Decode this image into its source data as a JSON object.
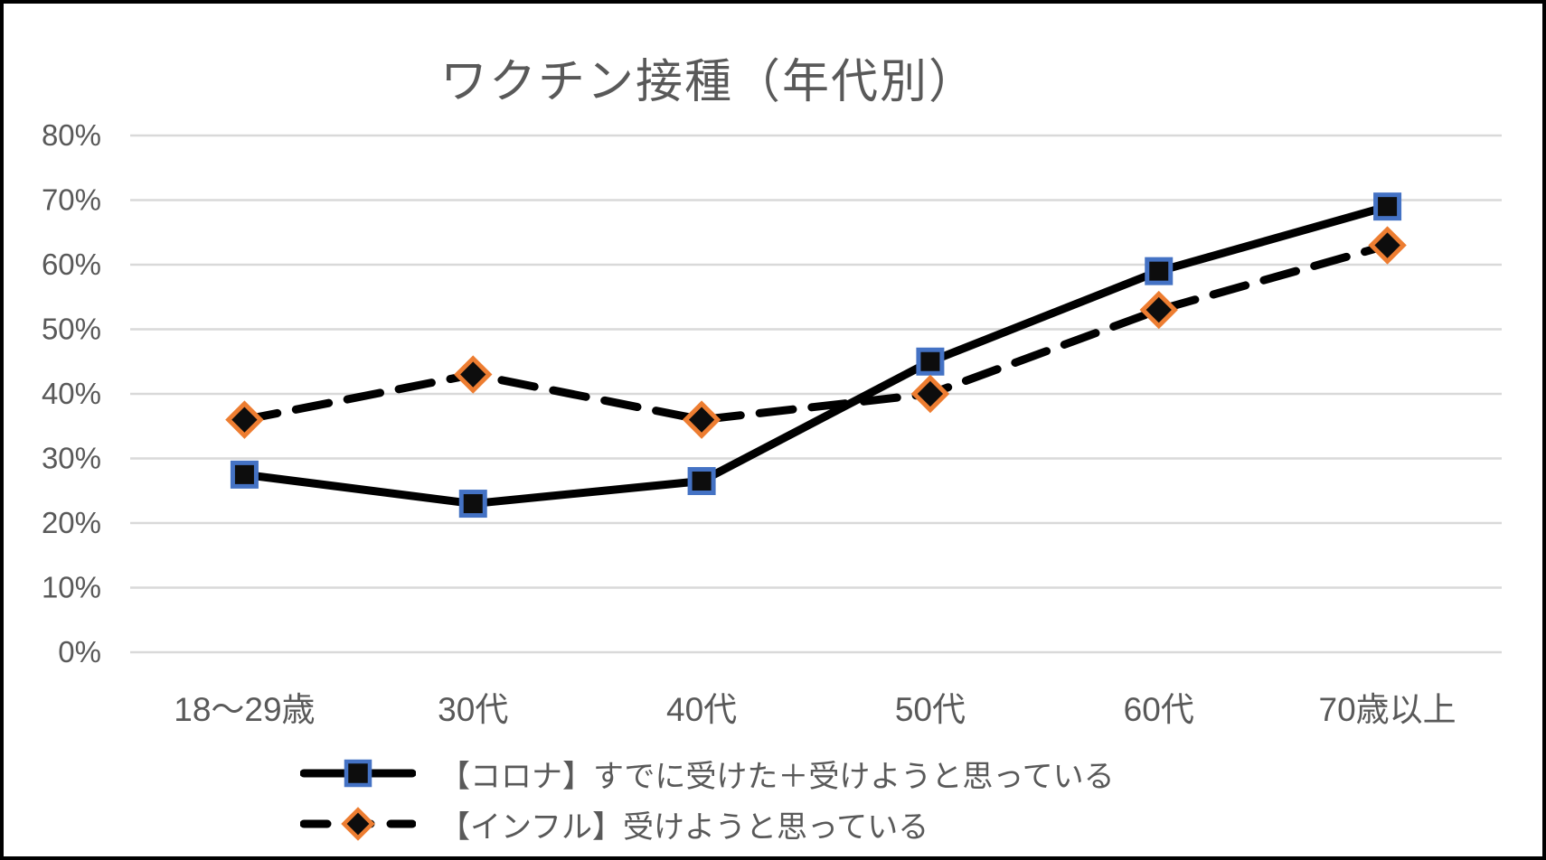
{
  "title": "ワクチン接種（年代別）",
  "chart_data": {
    "type": "line",
    "categories": [
      "18〜29歳",
      "30代",
      "40代",
      "50代",
      "60代",
      "70歳以上"
    ],
    "series": [
      {
        "name": "【コロナ】すでに受けた＋受けようと思っている",
        "values": [
          27.5,
          23,
          26.5,
          45,
          59,
          69
        ],
        "line_style": "solid",
        "marker": "square",
        "color": "#000000",
        "marker_fill": "#0d0d0d",
        "marker_border_color": "#4472C4"
      },
      {
        "name": "【インフル】受けようと思っている",
        "values": [
          36,
          43,
          36,
          40,
          53,
          63
        ],
        "line_style": "dashed",
        "marker": "diamond",
        "color": "#000000",
        "marker_fill": "#0d0d0d",
        "marker_border_color": "#ED7D31"
      }
    ],
    "ylim": [
      0,
      80
    ],
    "y_tick_step": 10,
    "y_tick_labels": [
      "0%",
      "10%",
      "20%",
      "30%",
      "40%",
      "50%",
      "60%",
      "70%",
      "80%"
    ],
    "grid": true,
    "legend_position": "bottom",
    "colors": {
      "text": "#595959",
      "gridline": "#D9D9D9",
      "frame_border": "#000000"
    }
  }
}
